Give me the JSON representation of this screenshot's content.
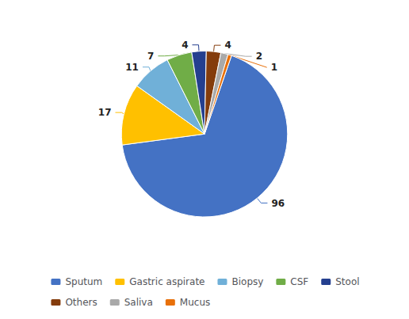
{
  "chart_data": {
    "type": "pie",
    "categories": [
      "Sputum",
      "Gastric aspirate",
      "Biopsy",
      "CSF",
      "Stool",
      "Others",
      "Saliva",
      "Mucus"
    ],
    "values": [
      96,
      17,
      11,
      7,
      4,
      4,
      2,
      1
    ],
    "colors": [
      "#4472C4",
      "#FFC000",
      "#70B0D8",
      "#70AD47",
      "#243F8F",
      "#843C0C",
      "#A9A9A9",
      "#E8700A"
    ],
    "data_labels": true,
    "legend": "bottom"
  }
}
